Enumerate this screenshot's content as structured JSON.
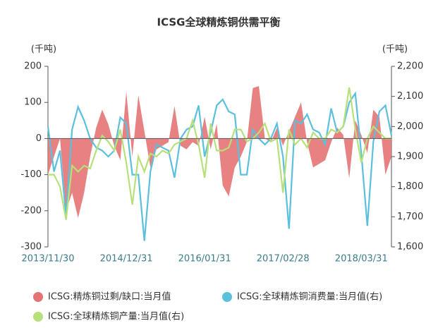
{
  "chart_data": {
    "type": "area_line",
    "title": "ICSG全球精炼铜供需平衡",
    "y_label": "(千吨)",
    "y2_label": "(千吨)",
    "categories": [
      "2013/11/30",
      null,
      null,
      null,
      null,
      null,
      null,
      null,
      null,
      null,
      null,
      null,
      null,
      "2014/12/31",
      null,
      null,
      null,
      null,
      null,
      null,
      null,
      null,
      null,
      null,
      null,
      null,
      "2016/01/31",
      null,
      null,
      null,
      null,
      null,
      null,
      null,
      null,
      null,
      null,
      null,
      null,
      "2017/02/28",
      null,
      null,
      null,
      null,
      null,
      null,
      null,
      null,
      null,
      null,
      null,
      null,
      "2018/03/31",
      null,
      null,
      null,
      null,
      null
    ],
    "series": [
      {
        "name": "ICSG:精炼铜过剩/缺口:当月值",
        "color": "#e57373",
        "axis": "y",
        "values": [
          -100,
          -50,
          0,
          -200,
          -150,
          -220,
          -150,
          -50,
          30,
          80,
          40,
          -20,
          -60,
          130,
          -50,
          120,
          20,
          -80,
          -30,
          -20,
          -10,
          90,
          -20,
          -30,
          -10,
          -20,
          60,
          -30,
          40,
          -130,
          -160,
          -80,
          -50,
          -10,
          140,
          145,
          0,
          -10,
          30,
          -20,
          20,
          60,
          100,
          -10,
          -80,
          -70,
          -60,
          -10,
          30,
          10,
          -110,
          50,
          10,
          -40,
          80,
          60,
          -100,
          -50
        ]
      },
      {
        "name": "ICSG:全球精炼铜消费量:当月值(右)",
        "color": "#5bc0de",
        "axis": "y2",
        "values": [
          2000,
          1850,
          1920,
          1700,
          1990,
          2065,
          2020,
          1960,
          1930,
          1920,
          1900,
          1920,
          2030,
          2010,
          1840,
          1840,
          1620,
          1850,
          1940,
          1930,
          1920,
          1830,
          1960,
          1990,
          2000,
          2070,
          1900,
          1980,
          2070,
          2090,
          2050,
          2040,
          1840,
          1840,
          1990,
          1960,
          1940,
          1960,
          2010,
          1900,
          1660,
          2020,
          2010,
          2040,
          1990,
          1980,
          1940,
          2060,
          1980,
          2000,
          2080,
          2110,
          1910,
          1670,
          1950,
          2050,
          2070,
          1970
        ]
      },
      {
        "name": "ICSG:全球精炼铜产量:当月值(右)",
        "color": "#b8e07a",
        "axis": "y2",
        "values": [
          1840,
          1840,
          1800,
          1690,
          1870,
          1850,
          1870,
          1860,
          1920,
          1970,
          1950,
          1920,
          1990,
          1880,
          1740,
          1900,
          1850,
          1910,
          1900,
          1920,
          1910,
          1940,
          1950,
          1960,
          2020,
          1940,
          1830,
          2010,
          1920,
          1920,
          1930,
          1990,
          1990,
          1950,
          1960,
          1980,
          2010,
          1950,
          1960,
          1780,
          1990,
          1940,
          1960,
          1930,
          1980,
          1960,
          1960,
          1990,
          1980,
          2000,
          2130,
          1990,
          1880,
          1960,
          2000,
          1980,
          1960,
          1960
        ]
      }
    ],
    "ylim": [
      -300,
      200
    ],
    "yticks": [
      -300,
      -200,
      -100,
      0,
      100,
      200
    ],
    "y2lim": [
      1600,
      2200
    ],
    "y2ticks": [
      {
        "value": 1600,
        "label": "1,600"
      },
      {
        "value": 1700,
        "label": "1,700"
      },
      {
        "value": 1800,
        "label": "1,800"
      },
      {
        "value": 1900,
        "label": "1,900"
      },
      {
        "value": 2000,
        "label": "2,000"
      },
      {
        "value": 2100,
        "label": "2,100"
      },
      {
        "value": 2200,
        "label": "2,200"
      }
    ]
  }
}
